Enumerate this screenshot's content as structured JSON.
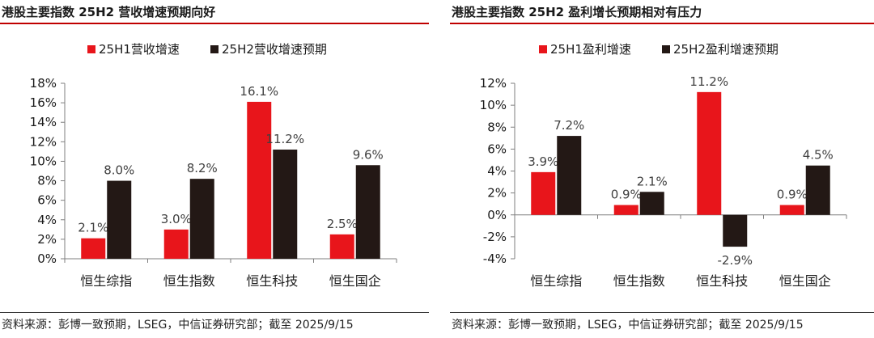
{
  "colors": {
    "accent": "#c00000",
    "series1": "#e8151b",
    "series2": "#231815",
    "axis": "#7f7f7f"
  },
  "panels": [
    {
      "title": "港股主要指数 25H2 营收增速预期向好",
      "source": "资料来源：彭博一致预期，LSEG，中信证券研究部；截至 2025/9/15"
    },
    {
      "title": "港股主要指数 25H2 盈利增长预期相对有压力",
      "source": "资料来源：彭博一致预期，LSEG，中信证券研究部；截至 2025/9/15"
    }
  ],
  "chart_data": [
    {
      "type": "bar",
      "categories": [
        "恒生综指",
        "恒生指数",
        "恒生科技",
        "恒生国企"
      ],
      "series": [
        {
          "name": "25H1营收增速",
          "values": [
            2.1,
            3.0,
            16.1,
            2.5
          ],
          "labels": [
            "2.1%",
            "3.0%",
            "16.1%",
            "2.5%"
          ]
        },
        {
          "name": "25H2营收增速预期",
          "values": [
            8.0,
            8.2,
            11.2,
            9.6
          ],
          "labels": [
            "8.0%",
            "8.2%",
            "11.2%",
            "9.6%"
          ]
        }
      ],
      "ylim": [
        0,
        18
      ],
      "yticks": [
        "0%",
        "2%",
        "4%",
        "6%",
        "8%",
        "10%",
        "12%",
        "14%",
        "16%",
        "18%"
      ],
      "legend": "top",
      "grid": false
    },
    {
      "type": "bar",
      "categories": [
        "恒生综指",
        "恒生指数",
        "恒生科技",
        "恒生国企"
      ],
      "series": [
        {
          "name": "25H1盈利增速",
          "values": [
            3.9,
            0.9,
            11.2,
            0.9
          ],
          "labels": [
            "3.9%",
            "0.9%",
            "11.2%",
            "0.9%"
          ]
        },
        {
          "name": "25H2盈利增速预期",
          "values": [
            7.2,
            2.1,
            -2.9,
            4.5
          ],
          "labels": [
            "7.2%",
            "2.1%",
            "-2.9%",
            "4.5%"
          ]
        }
      ],
      "ylim": [
        -4,
        12
      ],
      "yticks": [
        "-4%",
        "-2%",
        "0%",
        "2%",
        "4%",
        "6%",
        "8%",
        "10%",
        "12%"
      ],
      "legend": "top",
      "grid": false
    }
  ]
}
